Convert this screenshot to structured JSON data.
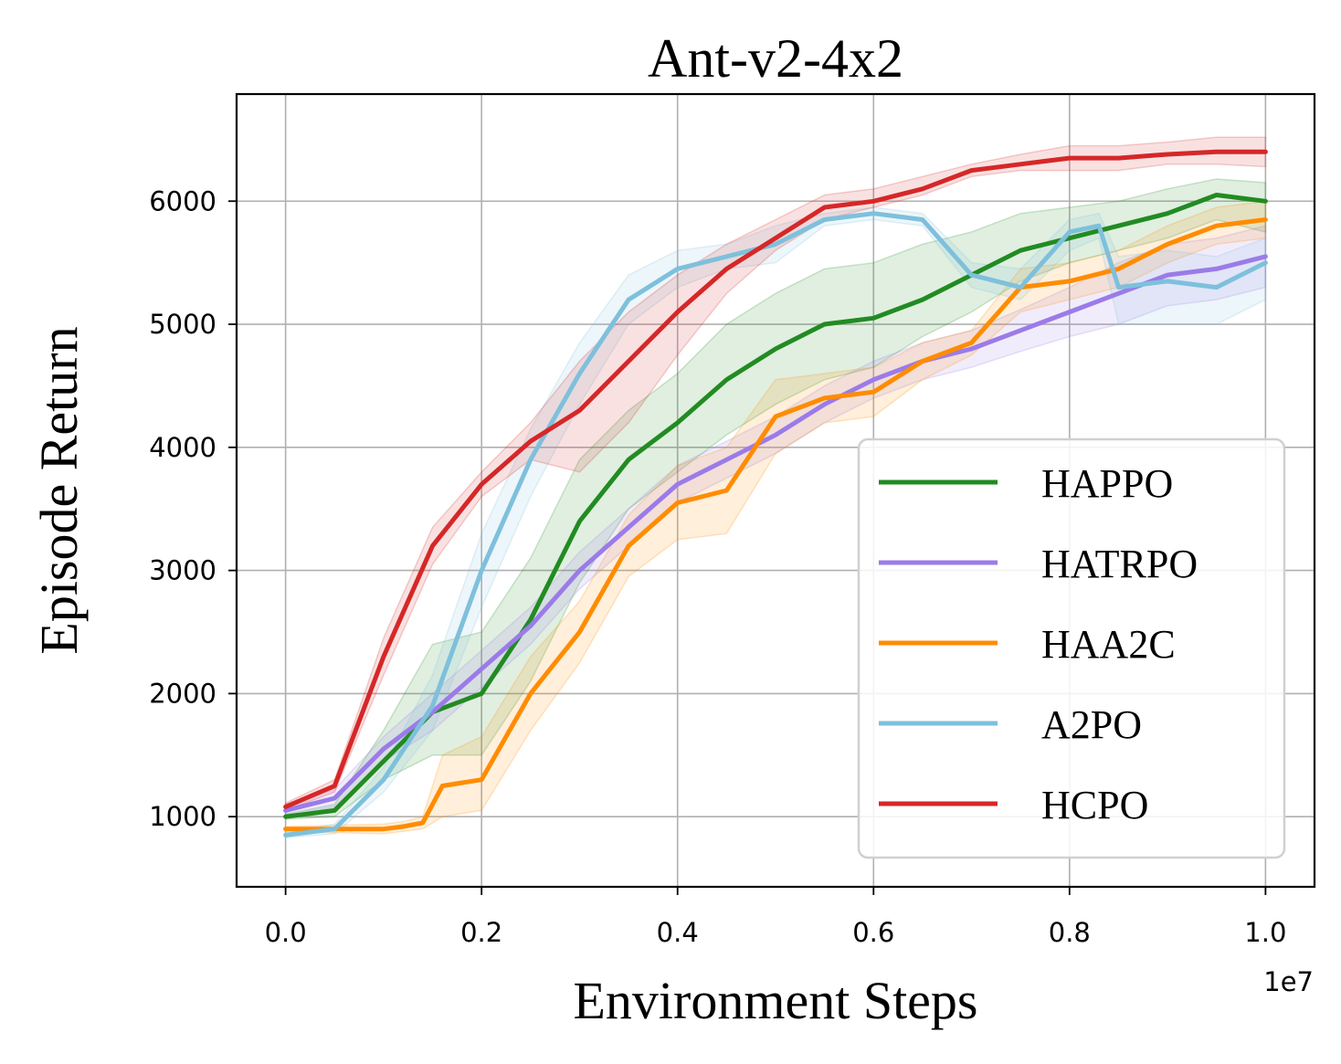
{
  "chart_data": {
    "type": "line",
    "title": "Ant-v2-4x2",
    "xlabel": "Environment Steps",
    "ylabel": "Episode Return",
    "x_multiplier_label": "1e7",
    "xlim": [
      -0.05,
      1.05
    ],
    "ylim": [
      430,
      6870
    ],
    "xticks": [
      0.0,
      0.2,
      0.4,
      0.6,
      0.8,
      1.0
    ],
    "xtick_labels": [
      "0.0",
      "0.2",
      "0.4",
      "0.6",
      "0.8",
      "1.0"
    ],
    "yticks": [
      1000,
      2000,
      3000,
      4000,
      5000,
      6000
    ],
    "ytick_labels": [
      "1000",
      "2000",
      "3000",
      "4000",
      "5000",
      "6000"
    ],
    "grid": true,
    "legend_position": "lower-right",
    "series": [
      {
        "name": "HAPPO",
        "color": "#228b22",
        "x": [
          0.0,
          0.05,
          0.1,
          0.15,
          0.2,
          0.25,
          0.3,
          0.35,
          0.4,
          0.45,
          0.5,
          0.55,
          0.6,
          0.65,
          0.7,
          0.75,
          0.8,
          0.85,
          0.9,
          0.95,
          1.0
        ],
        "values": [
          1000,
          1050,
          1450,
          1850,
          2000,
          2600,
          3400,
          3900,
          4200,
          4550,
          4800,
          5000,
          5050,
          5200,
          5400,
          5600,
          5700,
          5800,
          5900,
          6050,
          6000
        ],
        "lower": [
          980,
          1000,
          1300,
          1500,
          1500,
          2100,
          2900,
          3500,
          3800,
          4100,
          4350,
          4550,
          4650,
          4900,
          5100,
          5350,
          5500,
          5600,
          5700,
          5850,
          5750
        ],
        "upper": [
          1020,
          1100,
          1700,
          2400,
          2500,
          3100,
          3900,
          4300,
          4600,
          5000,
          5250,
          5450,
          5500,
          5650,
          5750,
          5900,
          5950,
          6000,
          6100,
          6180,
          6150
        ]
      },
      {
        "name": "HATRPO",
        "color": "#9b7be8",
        "x": [
          0.0,
          0.05,
          0.1,
          0.15,
          0.2,
          0.25,
          0.3,
          0.35,
          0.4,
          0.45,
          0.5,
          0.55,
          0.6,
          0.65,
          0.7,
          0.75,
          0.8,
          0.85,
          0.9,
          0.95,
          1.0
        ],
        "values": [
          1050,
          1150,
          1550,
          1850,
          2200,
          2550,
          3000,
          3350,
          3700,
          3900,
          4100,
          4350,
          4550,
          4700,
          4800,
          4950,
          5100,
          5250,
          5400,
          5450,
          5550
        ],
        "lower": [
          1000,
          1080,
          1450,
          1700,
          2050,
          2400,
          2850,
          3200,
          3550,
          3750,
          3950,
          4200,
          4400,
          4550,
          4650,
          4780,
          4900,
          5000,
          5150,
          5200,
          5300
        ],
        "upper": [
          1100,
          1220,
          1650,
          2000,
          2350,
          2700,
          3150,
          3500,
          3850,
          4050,
          4250,
          4500,
          4700,
          4850,
          4950,
          5120,
          5300,
          5500,
          5650,
          5700,
          5800
        ]
      },
      {
        "name": "HAA2C",
        "color": "#ff8c00",
        "x": [
          0.0,
          0.05,
          0.1,
          0.12,
          0.14,
          0.16,
          0.2,
          0.25,
          0.3,
          0.35,
          0.4,
          0.45,
          0.5,
          0.55,
          0.6,
          0.65,
          0.7,
          0.75,
          0.8,
          0.85,
          0.9,
          0.95,
          1.0
        ],
        "values": [
          900,
          900,
          900,
          920,
          950,
          1250,
          1300,
          2000,
          2500,
          3200,
          3550,
          3650,
          4250,
          4400,
          4450,
          4700,
          4850,
          5300,
          5350,
          5450,
          5650,
          5800,
          5850
        ],
        "lower": [
          880,
          870,
          860,
          880,
          900,
          1000,
          1050,
          1700,
          2250,
          2950,
          3250,
          3300,
          3950,
          4200,
          4250,
          4550,
          4750,
          5100,
          5200,
          5300,
          5500,
          5650,
          5700
        ],
        "upper": [
          920,
          930,
          940,
          960,
          1000,
          1500,
          1650,
          2300,
          2750,
          3450,
          3850,
          4000,
          4550,
          4600,
          4650,
          4850,
          4950,
          5450,
          5500,
          5600,
          5800,
          5950,
          6000
        ]
      },
      {
        "name": "A2PO",
        "color": "#7ec0dc",
        "x": [
          0.0,
          0.05,
          0.1,
          0.15,
          0.2,
          0.25,
          0.3,
          0.35,
          0.4,
          0.45,
          0.5,
          0.55,
          0.6,
          0.65,
          0.7,
          0.75,
          0.8,
          0.83,
          0.85,
          0.9,
          0.95,
          1.0
        ],
        "values": [
          850,
          900,
          1300,
          1900,
          3000,
          3900,
          4600,
          5200,
          5450,
          5550,
          5650,
          5850,
          5900,
          5850,
          5400,
          5300,
          5750,
          5800,
          5300,
          5350,
          5300,
          5500
        ],
        "lower": [
          830,
          860,
          1200,
          1700,
          2700,
          3600,
          4350,
          5000,
          5300,
          5450,
          5500,
          5800,
          5850,
          5800,
          5300,
          5200,
          5600,
          5700,
          5000,
          5000,
          5000,
          5200
        ],
        "upper": [
          870,
          940,
          1400,
          2150,
          3300,
          4150,
          4850,
          5400,
          5600,
          5650,
          5800,
          5900,
          5950,
          5900,
          5500,
          5450,
          5850,
          5900,
          5550,
          5600,
          5550,
          5700
        ]
      },
      {
        "name": "HCPO",
        "color": "#d62728",
        "x": [
          0.0,
          0.05,
          0.1,
          0.15,
          0.2,
          0.25,
          0.3,
          0.35,
          0.4,
          0.45,
          0.5,
          0.55,
          0.6,
          0.65,
          0.7,
          0.75,
          0.8,
          0.85,
          0.9,
          0.95,
          1.0
        ],
        "values": [
          1080,
          1250,
          2300,
          3200,
          3700,
          4050,
          4300,
          4700,
          5100,
          5450,
          5700,
          5950,
          6000,
          6100,
          6250,
          6300,
          6350,
          6350,
          6380,
          6400,
          6400
        ],
        "lower": [
          1050,
          1200,
          2150,
          3050,
          3600,
          3900,
          3800,
          4200,
          4750,
          5250,
          5600,
          5850,
          5950,
          6050,
          6200,
          6250,
          6250,
          6250,
          6300,
          6300,
          6280
        ],
        "upper": [
          1110,
          1300,
          2450,
          3350,
          3800,
          4200,
          4700,
          5100,
          5400,
          5650,
          5850,
          6050,
          6100,
          6200,
          6300,
          6380,
          6450,
          6450,
          6480,
          6520,
          6520
        ]
      }
    ]
  }
}
